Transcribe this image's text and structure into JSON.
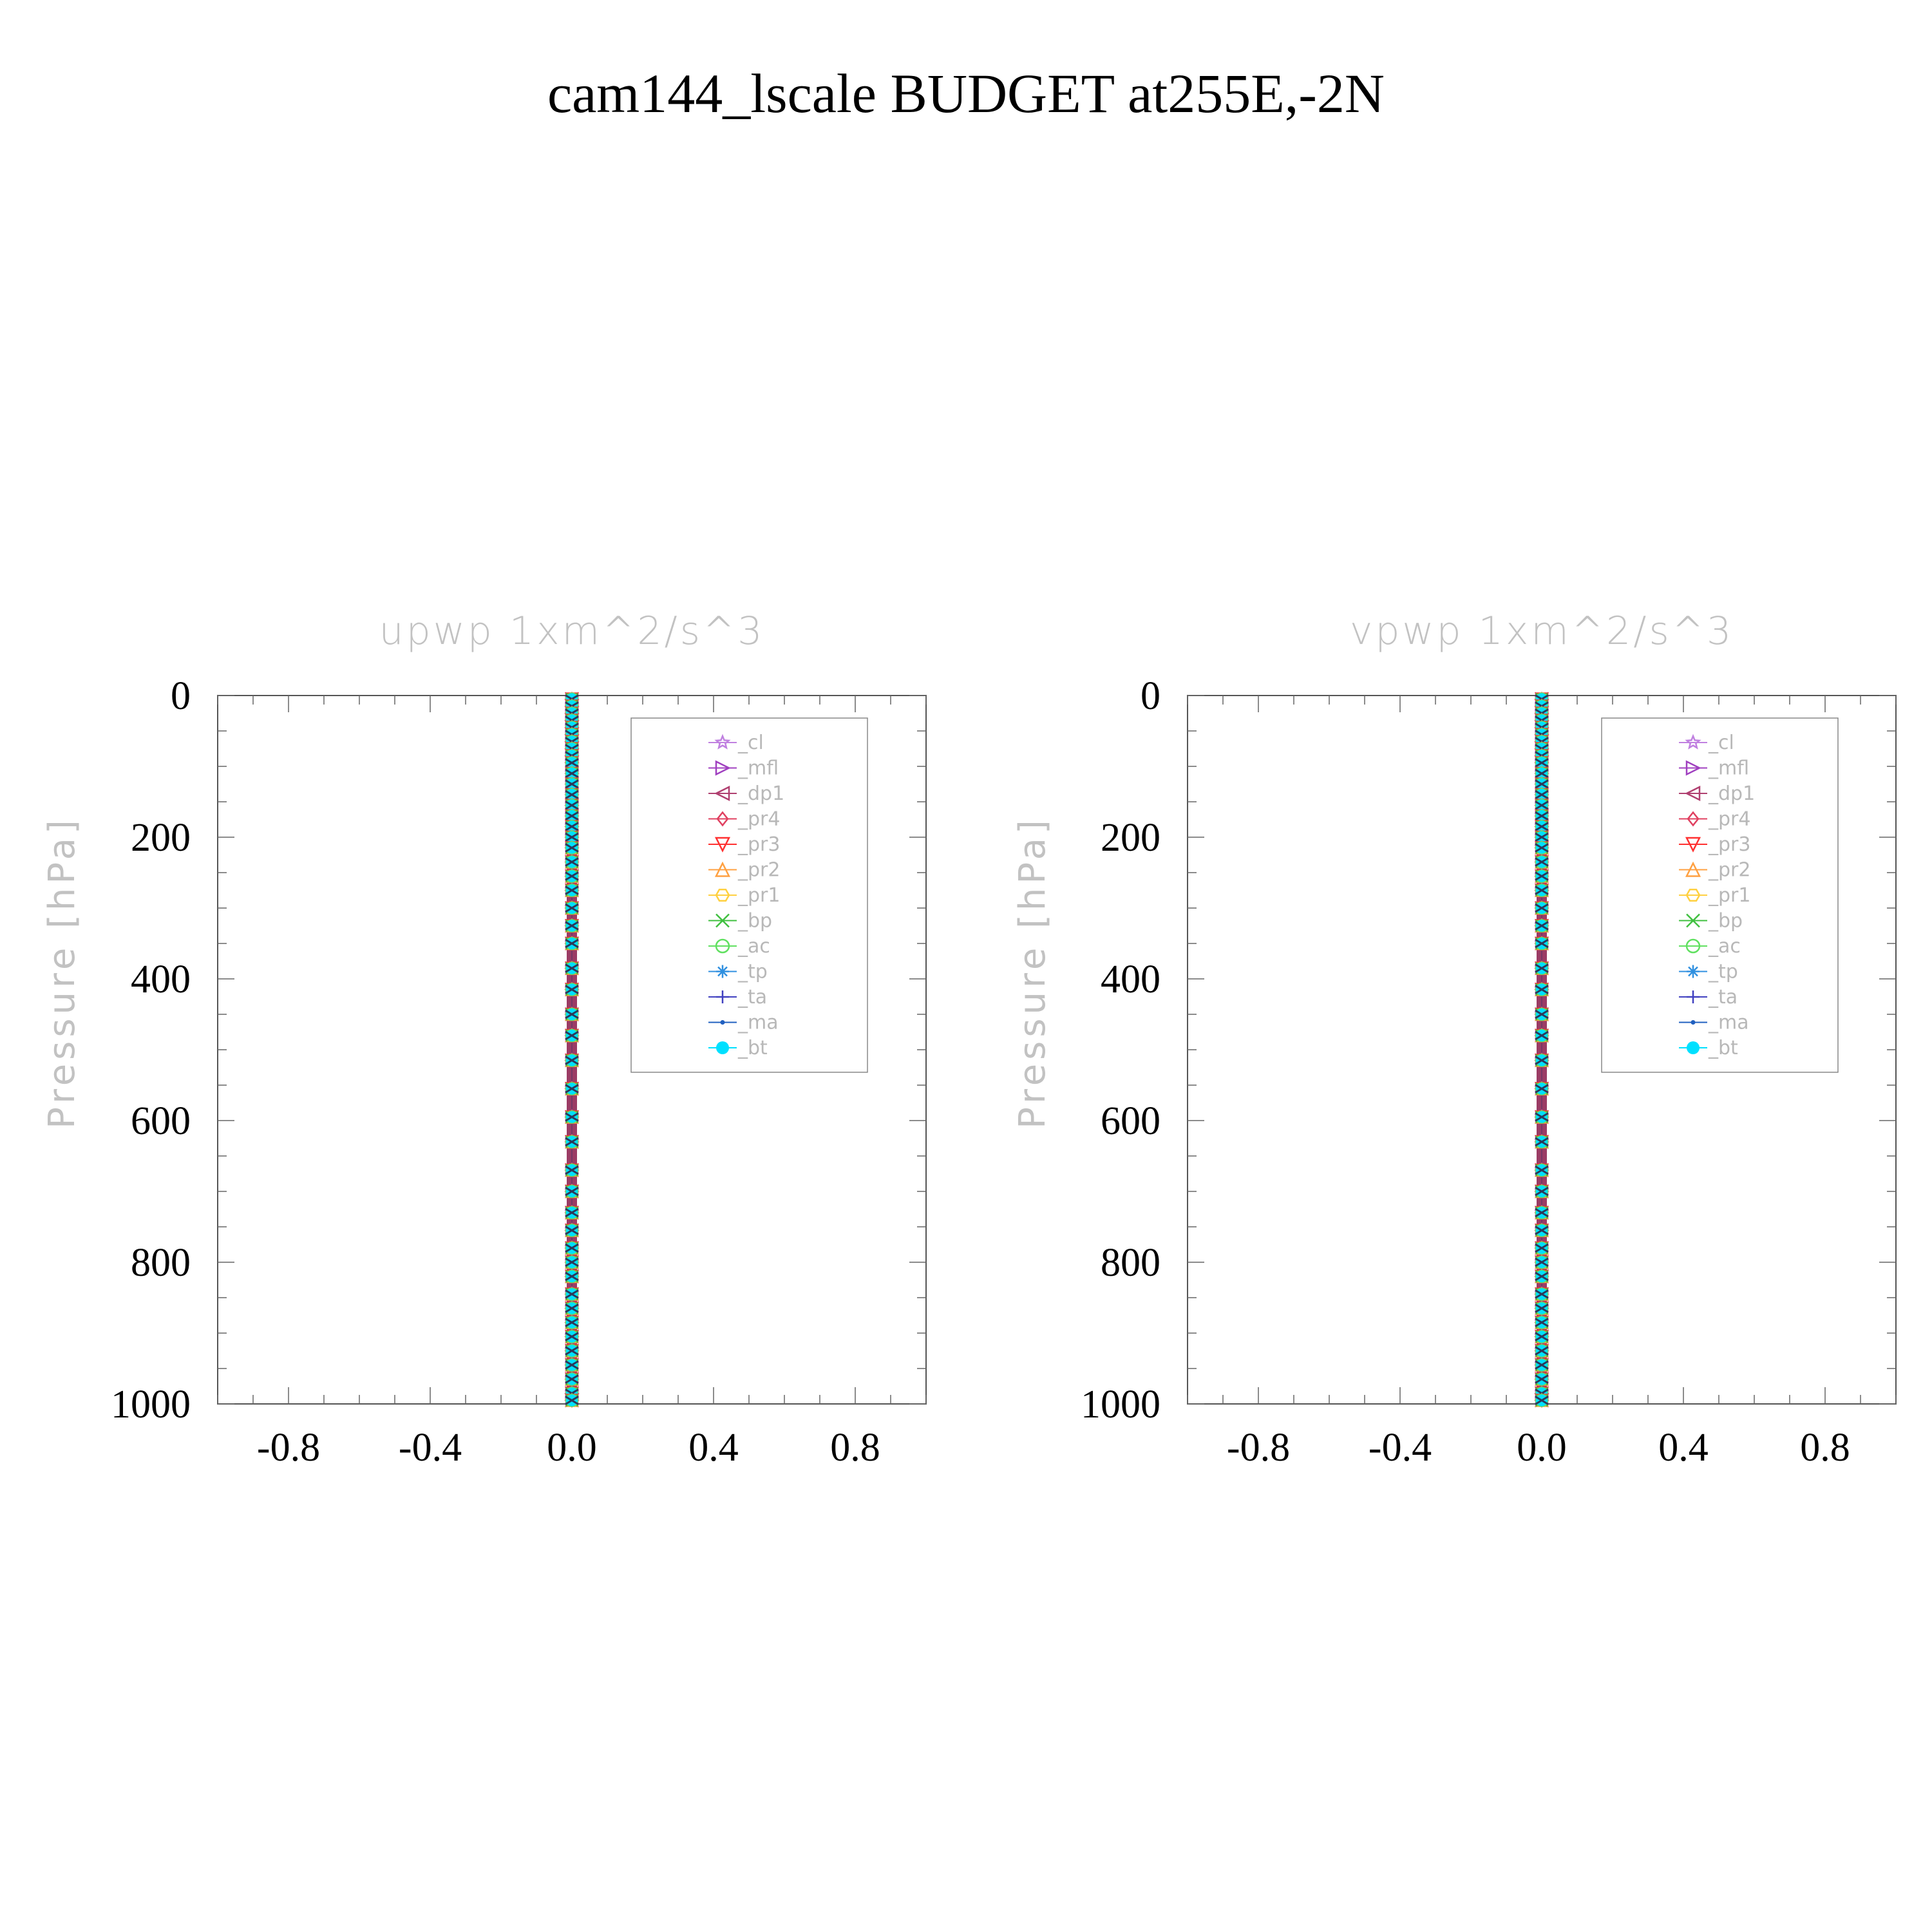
{
  "title": "cam144_lscale  BUDGET at255E,-2N",
  "chart_data": [
    {
      "type": "line",
      "title": "upwp",
      "units": "1xm^2/s^3",
      "ylabel": "Pressure [hPa]",
      "xlim": [
        -1.0,
        1.0
      ],
      "ylim": [
        0,
        1000
      ],
      "y_inverted": true,
      "xticks": [
        -0.8,
        -0.4,
        0.0,
        0.4,
        0.8
      ],
      "xtick_labels": [
        "-0.8",
        "-0.4",
        "0.0",
        "0.4",
        "0.8"
      ],
      "yticks": [
        0,
        200,
        400,
        600,
        800,
        1000
      ],
      "ytick_labels": [
        "0",
        "200",
        "400",
        "600",
        "800",
        "1000"
      ],
      "legend_position": "top-right",
      "levels": [
        5,
        15,
        25,
        35,
        45,
        55,
        65,
        75,
        85,
        95,
        110,
        125,
        140,
        155,
        170,
        185,
        200,
        215,
        235,
        255,
        275,
        300,
        325,
        350,
        385,
        415,
        450,
        480,
        515,
        555,
        595,
        630,
        670,
        700,
        730,
        755,
        780,
        800,
        820,
        845,
        865,
        885,
        905,
        925,
        945,
        965,
        985,
        995
      ],
      "series": [
        {
          "name": "_cl",
          "color": "#c080e0",
          "marker": "star",
          "value": 0.0
        },
        {
          "name": "_mfl",
          "color": "#a040c0",
          "marker": "tri-right",
          "value": 0.0
        },
        {
          "name": "_dp1",
          "color": "#b04070",
          "marker": "tri-left",
          "value": 0.0
        },
        {
          "name": "_pr4",
          "color": "#e04060",
          "marker": "diamond",
          "value": 0.0
        },
        {
          "name": "_pr3",
          "color": "#ff3030",
          "marker": "tri-down",
          "value": 0.0
        },
        {
          "name": "_pr2",
          "color": "#ffa040",
          "marker": "tri-up",
          "value": 0.0
        },
        {
          "name": "_pr1",
          "color": "#ffd040",
          "marker": "hexagon",
          "value": 0.0
        },
        {
          "name": "_bp",
          "color": "#40c040",
          "marker": "x",
          "value": 0.0
        },
        {
          "name": "_ac",
          "color": "#60e060",
          "marker": "circle",
          "value": 0.0
        },
        {
          "name": "_tp",
          "color": "#3090e0",
          "marker": "asterisk",
          "value": 0.0
        },
        {
          "name": "_ta",
          "color": "#4040c0",
          "marker": "plus",
          "value": 0.0
        },
        {
          "name": "_ma",
          "color": "#2060c0",
          "marker": "dot",
          "value": 0.0
        },
        {
          "name": "_bt",
          "color": "#00e0ff",
          "marker": "filled-circle",
          "value": 0.0
        }
      ]
    },
    {
      "type": "line",
      "title": "vpwp",
      "units": "1xm^2/s^3",
      "ylabel": "Pressure [hPa]",
      "xlim": [
        -1.0,
        1.0
      ],
      "ylim": [
        0,
        1000
      ],
      "y_inverted": true,
      "xticks": [
        -0.8,
        -0.4,
        0.0,
        0.4,
        0.8
      ],
      "xtick_labels": [
        "-0.8",
        "-0.4",
        "0.0",
        "0.4",
        "0.8"
      ],
      "yticks": [
        0,
        200,
        400,
        600,
        800,
        1000
      ],
      "ytick_labels": [
        "0",
        "200",
        "400",
        "600",
        "800",
        "1000"
      ],
      "legend_position": "top-right",
      "levels": [
        5,
        15,
        25,
        35,
        45,
        55,
        65,
        75,
        85,
        95,
        110,
        125,
        140,
        155,
        170,
        185,
        200,
        215,
        235,
        255,
        275,
        300,
        325,
        350,
        385,
        415,
        450,
        480,
        515,
        555,
        595,
        630,
        670,
        700,
        730,
        755,
        780,
        800,
        820,
        845,
        865,
        885,
        905,
        925,
        945,
        965,
        985,
        995
      ],
      "series": [
        {
          "name": "_cl",
          "color": "#c080e0",
          "marker": "star",
          "value": 0.0
        },
        {
          "name": "_mfl",
          "color": "#a040c0",
          "marker": "tri-right",
          "value": 0.0
        },
        {
          "name": "_dp1",
          "color": "#b04070",
          "marker": "tri-left",
          "value": 0.0
        },
        {
          "name": "_pr4",
          "color": "#e04060",
          "marker": "diamond",
          "value": 0.0
        },
        {
          "name": "_pr3",
          "color": "#ff3030",
          "marker": "tri-down",
          "value": 0.0
        },
        {
          "name": "_pr2",
          "color": "#ffa040",
          "marker": "tri-up",
          "value": 0.0
        },
        {
          "name": "_pr1",
          "color": "#ffd040",
          "marker": "hexagon",
          "value": 0.0
        },
        {
          "name": "_bp",
          "color": "#40c040",
          "marker": "x",
          "value": 0.0
        },
        {
          "name": "_ac",
          "color": "#60e060",
          "marker": "circle",
          "value": 0.0
        },
        {
          "name": "_tp",
          "color": "#3090e0",
          "marker": "asterisk",
          "value": 0.0
        },
        {
          "name": "_ta",
          "color": "#4040c0",
          "marker": "plus",
          "value": 0.0
        },
        {
          "name": "_ma",
          "color": "#2060c0",
          "marker": "dot",
          "value": 0.0
        },
        {
          "name": "_bt",
          "color": "#00e0ff",
          "marker": "filled-circle",
          "value": 0.0
        }
      ]
    }
  ]
}
